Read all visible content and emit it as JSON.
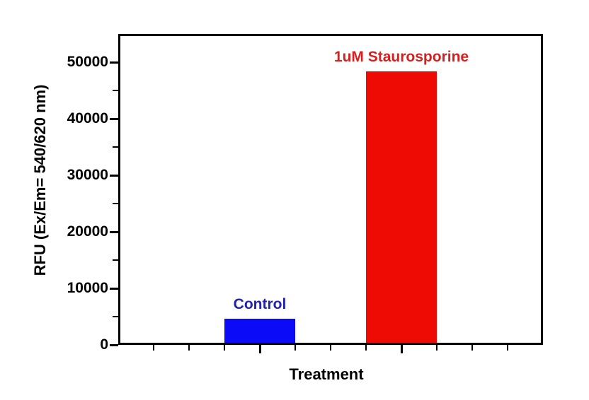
{
  "figure": {
    "background": "#ffffff",
    "axis_color": "#000000"
  },
  "chart_data": {
    "type": "bar",
    "title": "",
    "xlabel": "Treatment",
    "ylabel": "RFU (Ex/Em= 540/620 nm)",
    "categories": [
      "Control",
      "1uM Staurosporine"
    ],
    "values": [
      4200,
      48000
    ],
    "bar_colors": [
      "#0b0bf7",
      "#ee0b04"
    ],
    "category_label_colors": [
      "#2121b2",
      "#d42120"
    ],
    "ylim": [
      0,
      55000
    ],
    "yticks": [
      0,
      10000,
      20000,
      30000,
      40000,
      50000
    ],
    "ytick_labels": [
      "0",
      "10000",
      "20000",
      "30000",
      "40000",
      "50000"
    ],
    "y_minor_ticks": [
      5000,
      15000,
      25000,
      35000,
      45000
    ],
    "grid": false,
    "legend": "none",
    "frame": "full-box",
    "tick_direction": "out"
  }
}
